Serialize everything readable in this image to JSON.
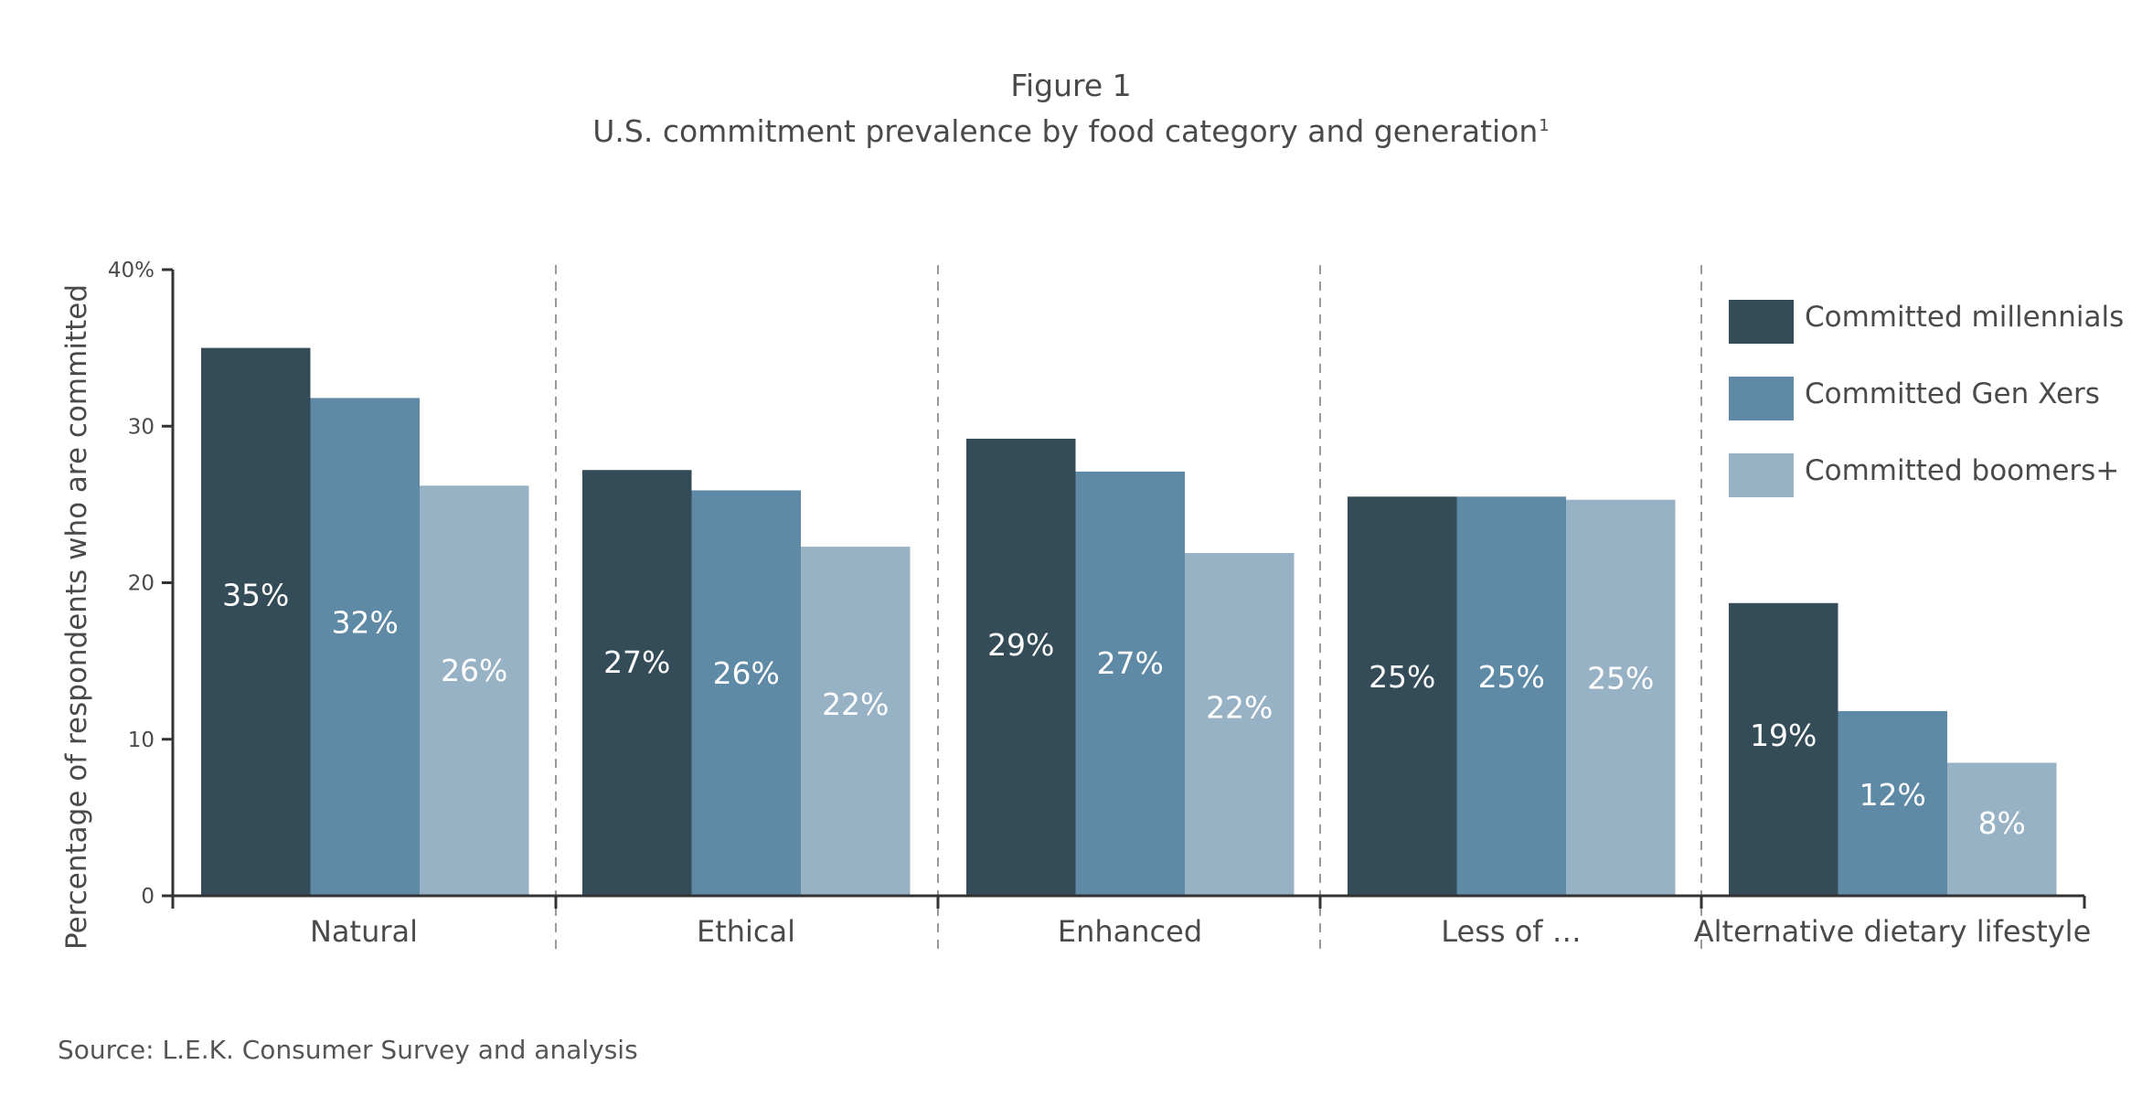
{
  "header": {
    "figure_label": "Figure 1",
    "subtitle": "U.S. commitment prevalence by food category and generation",
    "subtitle_sup": "1"
  },
  "footer": {
    "source": "Source: L.E.K. Consumer Survey and analysis"
  },
  "colors": {
    "millennials": "#344b58",
    "genx": "#5e8aa5",
    "boomers": "#97b2c4",
    "axis": "#333333",
    "divider": "#9a9a9a",
    "bar_label": "#ffffff"
  },
  "chart_data": {
    "type": "bar",
    "title": "U.S. commitment prevalence by food category and generation",
    "ylabel": "Percentage of respondents who are committed",
    "xlabel": "",
    "ylim": [
      0,
      40
    ],
    "yticks": [
      0,
      10,
      20,
      30,
      40
    ],
    "ytick_labels": [
      "0",
      "10",
      "20",
      "30",
      "40%"
    ],
    "categories": [
      "Natural",
      "Ethical",
      "Enhanced",
      "Less of …",
      "Alternative dietary lifestyle"
    ],
    "series": [
      {
        "name": "Committed millennials",
        "color_key": "millennials",
        "values": [
          35,
          27.2,
          29.2,
          25.5,
          18.7
        ],
        "labels": [
          "35%",
          "27%",
          "29%",
          "25%",
          "19%"
        ]
      },
      {
        "name": "Committed Gen Xers",
        "color_key": "genx",
        "values": [
          31.8,
          25.9,
          27.1,
          25.5,
          11.8
        ],
        "labels": [
          "32%",
          "26%",
          "27%",
          "25%",
          "12%"
        ]
      },
      {
        "name": "Committed boomers+",
        "color_key": "boomers",
        "values": [
          26.2,
          22.3,
          21.9,
          25.3,
          8.5
        ],
        "labels": [
          "26%",
          "22%",
          "22%",
          "25%",
          "8%"
        ]
      }
    ],
    "legend_position": "top-right",
    "grid": false,
    "category_dividers": "dashed"
  }
}
